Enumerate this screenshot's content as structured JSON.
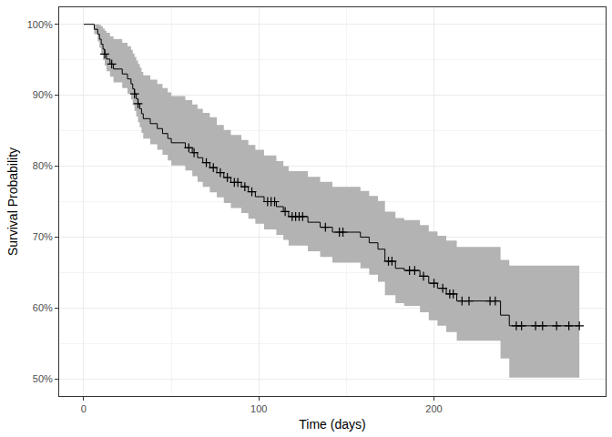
{
  "chart_data": {
    "type": "survival",
    "x_label": "Time (days)",
    "y_label": "Survival Probability",
    "xlim": [
      -14,
      298
    ],
    "ylim": [
      47.6,
      102.4
    ],
    "xticks": [
      0,
      100,
      200
    ],
    "yticks": [
      {
        "value": 50,
        "label": "50%"
      },
      {
        "value": 60,
        "label": "60%"
      },
      {
        "value": 70,
        "label": "70%"
      },
      {
        "value": 80,
        "label": "80%"
      },
      {
        "value": 90,
        "label": "90%"
      },
      {
        "value": 100,
        "label": "100%"
      }
    ],
    "grid": true,
    "x": [
      0,
      6,
      8,
      9,
      10,
      11,
      12,
      13,
      15,
      17,
      22,
      25,
      27,
      28,
      29,
      30,
      31,
      32,
      33,
      34,
      38,
      42,
      45,
      48,
      50,
      58,
      62,
      65,
      68,
      72,
      76,
      80,
      84,
      90,
      94,
      98,
      103,
      110,
      114,
      117,
      128,
      135,
      142,
      158,
      163,
      168,
      172,
      178,
      183,
      192,
      197,
      202,
      207,
      213,
      238,
      243,
      283
    ],
    "series": [
      {
        "type": "band",
        "color": "#b3b3b3",
        "upper": [
          100,
          100,
          100,
          99.9,
          99.7,
          99.4,
          99.1,
          98.8,
          98.3,
          97.9,
          97.4,
          96.9,
          96.4,
          95.9,
          95.4,
          94.9,
          94.4,
          93.9,
          93.3,
          92.8,
          92.2,
          91.6,
          91.0,
          90.4,
          89.9,
          89.3,
          88.7,
          88.1,
          87.5,
          86.9,
          85.8,
          85.1,
          84.4,
          83.7,
          83.0,
          82.3,
          81.5,
          80.7,
          80.0,
          79.3,
          78.5,
          77.8,
          77.1,
          76.5,
          75.8,
          75.1,
          73.6,
          72.7,
          72.4,
          71.7,
          70.8,
          70.2,
          69.5,
          68.6,
          66.8,
          66.0,
          66.0
        ],
        "lower": [
          100,
          98.6,
          97.6,
          96.7,
          95.9,
          95.0,
          94.2,
          93.4,
          92.6,
          91.8,
          91.0,
          90.2,
          89.4,
          88.6,
          87.8,
          87.0,
          86.2,
          85.5,
          84.7,
          83.9,
          83.1,
          82.3,
          81.6,
          80.8,
          80.1,
          79.4,
          78.6,
          77.8,
          77.1,
          76.3,
          75.6,
          74.8,
          74.1,
          73.4,
          72.6,
          71.9,
          71.1,
          70.3,
          69.6,
          68.8,
          68.0,
          67.2,
          66.4,
          65.6,
          64.7,
          63.7,
          61.8,
          60.7,
          60.3,
          59.4,
          58.3,
          57.5,
          56.6,
          55.4,
          52.9,
          50.2,
          50.2
        ]
      },
      {
        "type": "step",
        "color": "#000000",
        "values": [
          100,
          99.3,
          98.6,
          97.9,
          97.2,
          96.5,
          95.8,
          95.1,
          94.4,
          93.7,
          93.0,
          92.3,
          91.6,
          90.9,
          90.2,
          89.5,
          88.8,
          88.1,
          87.4,
          86.7,
          86.0,
          85.3,
          84.6,
          83.9,
          83.3,
          82.6,
          81.9,
          81.2,
          80.5,
          79.8,
          79.1,
          78.4,
          77.7,
          77.1,
          76.4,
          75.7,
          75.0,
          74.3,
          73.6,
          72.9,
          72.1,
          71.4,
          70.7,
          70.0,
          69.2,
          68.3,
          66.6,
          65.6,
          65.3,
          64.5,
          63.5,
          62.8,
          62.0,
          61.0,
          59.0,
          57.5,
          57.5
        ]
      },
      {
        "type": "scatter",
        "marker": "cross",
        "color": "#000000",
        "x": [
          12,
          16,
          29,
          31,
          60,
          63,
          70,
          74,
          78,
          82,
          86,
          88,
          92,
          96,
          105,
          107,
          109,
          115,
          119,
          121,
          123,
          125,
          138,
          146,
          148,
          174,
          176,
          186,
          189,
          194,
          200,
          205,
          209,
          211,
          216,
          220,
          232,
          235,
          247,
          250,
          258,
          262,
          270,
          277,
          283
        ],
        "values": [
          95.8,
          94.4,
          90.2,
          88.8,
          82.6,
          81.9,
          80.5,
          79.8,
          79.1,
          78.4,
          77.7,
          77.7,
          77.1,
          76.4,
          75.0,
          75.0,
          75.0,
          73.6,
          72.9,
          72.9,
          72.9,
          72.9,
          71.4,
          70.7,
          70.7,
          66.6,
          66.6,
          65.3,
          65.3,
          64.5,
          63.5,
          62.8,
          62.0,
          62.0,
          61.0,
          61.0,
          61.0,
          61.0,
          57.5,
          57.5,
          57.5,
          57.5,
          57.5,
          57.5,
          57.5
        ]
      }
    ]
  }
}
